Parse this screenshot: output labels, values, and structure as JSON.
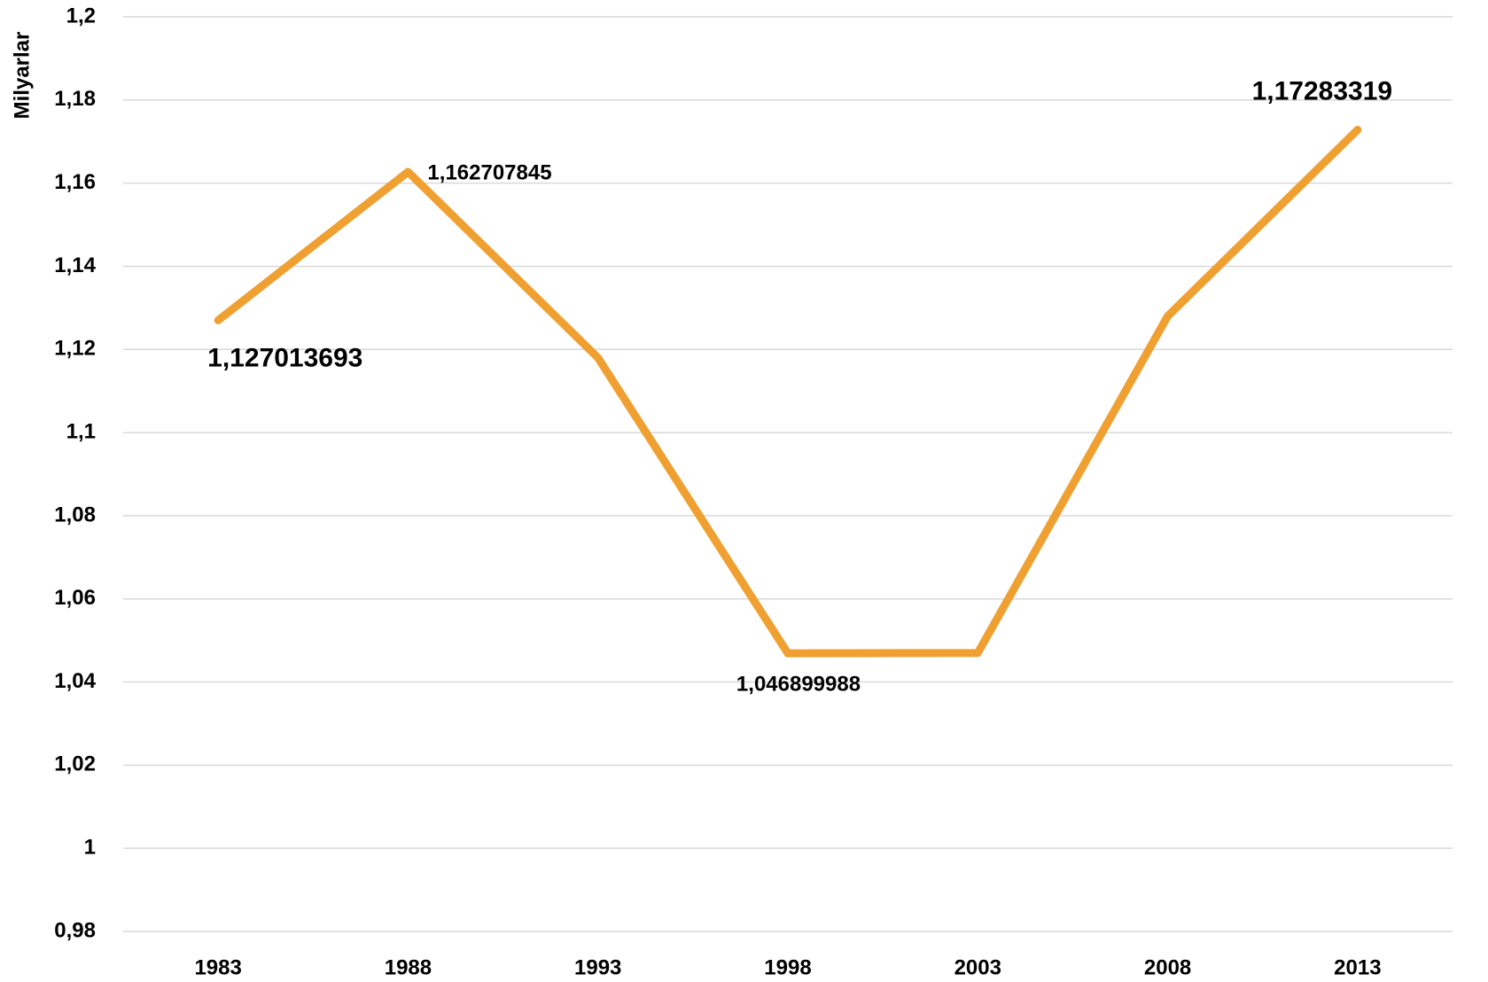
{
  "chart_data": {
    "type": "line",
    "y_label": "Milyarlar",
    "categories": [
      "1983",
      "1988",
      "1993",
      "1998",
      "2003",
      "2008",
      "2013"
    ],
    "series": [
      {
        "name": "Milyarlar",
        "color": "#f0a030",
        "values": [
          1.127013693,
          1.162707845,
          1.118,
          1.046899988,
          1.047,
          1.128,
          1.17283319
        ],
        "value_labels": [
          "1,127013693",
          "1,162707845",
          null,
          "1,046899988",
          null,
          null,
          "1,17283319"
        ]
      }
    ],
    "ylim": [
      0.98,
      1.2
    ],
    "yticks": [
      {
        "value": 0.98,
        "label": "0,98"
      },
      1,
      {
        "value": 1.02,
        "label": "1,02"
      },
      {
        "value": 1.04,
        "label": "1,04"
      },
      {
        "value": 1.06,
        "label": "1,06"
      },
      {
        "value": 1.08,
        "label": "1,08"
      },
      {
        "value": 1.1,
        "label": "1,1"
      },
      {
        "value": 1.12,
        "label": "1,12"
      },
      {
        "value": 1.14,
        "label": "1,14"
      },
      {
        "value": 1.16,
        "label": "1,16"
      },
      {
        "value": 1.18,
        "label": "1,18"
      },
      {
        "value": 1.2,
        "label": "1,2"
      }
    ],
    "grid": true
  }
}
